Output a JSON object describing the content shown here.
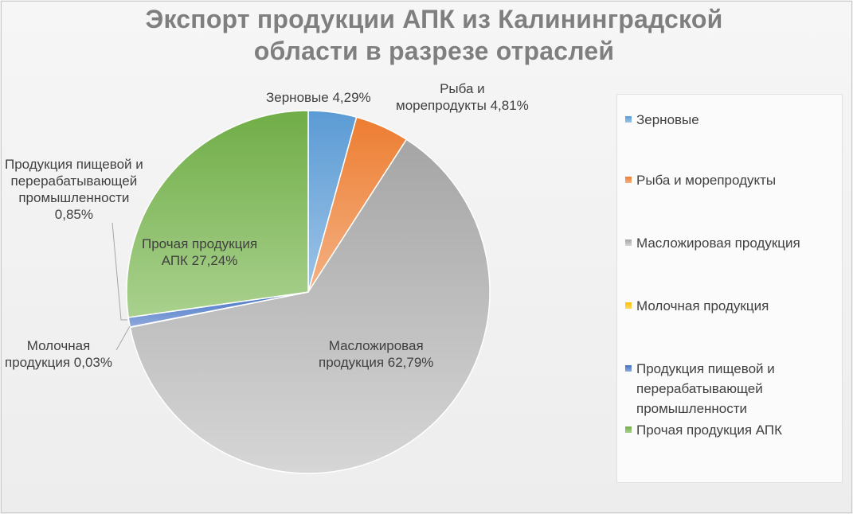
{
  "chart_data": {
    "type": "pie",
    "title": "Экспорт продукции АПК из Калининградской области в разрезе отраслей",
    "title_lines": [
      "Экспорт продукции АПК из Калининградской",
      "области в разрезе отраслей"
    ],
    "legend_position": "right",
    "slices": [
      {
        "name": "Зерновые",
        "value": 4.29,
        "value_label": "4,29%",
        "color": "#5b9bd5",
        "color_light": "#9dc3e6"
      },
      {
        "name": "Рыба и морепродукты",
        "value": 4.81,
        "value_label": "4,81%",
        "color": "#ed7d31",
        "color_light": "#f4b183"
      },
      {
        "name": "Масложировая продукция",
        "value": 62.79,
        "value_label": "62,79%",
        "color": "#a5a5a5",
        "color_light": "#d6d6d6"
      },
      {
        "name": "Молочная продукция",
        "value": 0.03,
        "value_label": "0,03%",
        "color": "#ffc000",
        "color_light": "#ffd966"
      },
      {
        "name": "Продукция пищевой и перерабатывающей промышленности",
        "value": 0.85,
        "value_label": "0,85%",
        "color": "#4472c4",
        "color_light": "#8faadc"
      },
      {
        "name": "Прочая продукция АПК",
        "value": 27.24,
        "value_label": "27,24%",
        "color": "#70ad47",
        "color_light": "#a9d18e"
      }
    ]
  },
  "data_labels": {
    "grain": "Зерновые 4,29%",
    "fish": [
      "Рыба и",
      "морепродукты 4,81%"
    ],
    "oil": [
      "Масложировая",
      "продукция 62,79%"
    ],
    "dairy": [
      "Молочная",
      "продукция 0,03%"
    ],
    "food": [
      "Продукция пищевой и",
      "перерабатывающей",
      "промышленности",
      "0,85%"
    ],
    "other": [
      "Прочая продукция",
      "АПК 27,24%"
    ]
  },
  "legend": {
    "items": [
      {
        "lines": [
          "Зерновые"
        ]
      },
      {
        "lines": [
          "Рыба и морепродукты"
        ]
      },
      {
        "lines": [
          "Масложировая продукция"
        ]
      },
      {
        "lines": [
          "Молочная продукция"
        ]
      },
      {
        "lines": [
          "Продукция пищевой и",
          "перерабатывающей",
          "промышленности"
        ]
      },
      {
        "lines": [
          "Прочая продукция АПК"
        ]
      }
    ]
  }
}
